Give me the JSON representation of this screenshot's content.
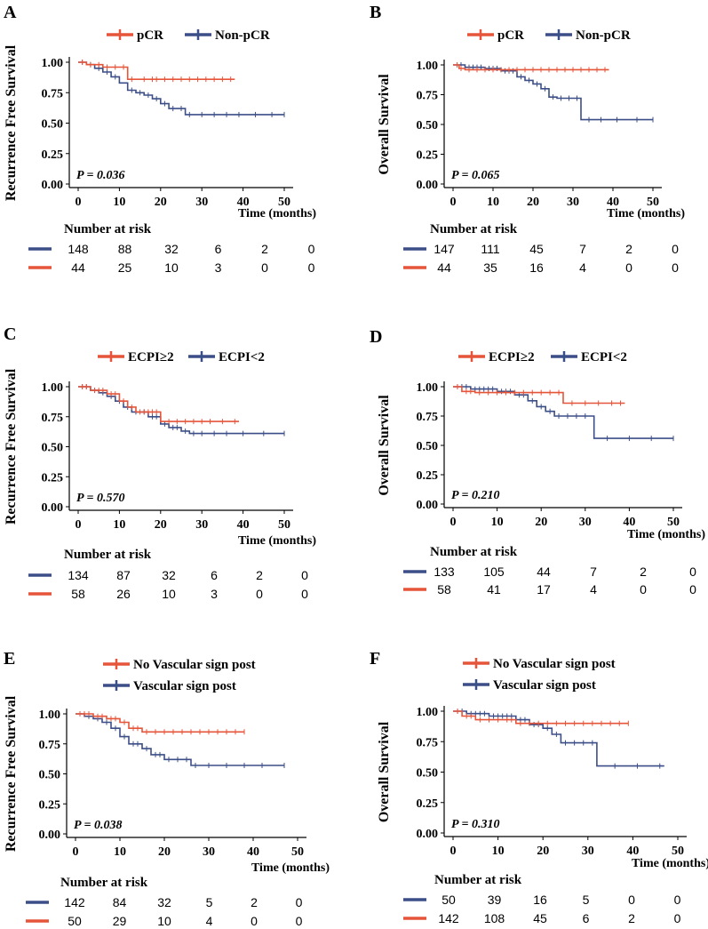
{
  "colors": {
    "red": "#e6553a",
    "blue": "#3b4e87",
    "axis": "#000000"
  },
  "chart_data": [
    {
      "type": "line",
      "label": "A",
      "title": "",
      "ylabel": "Recurrence Free Survival",
      "xlabel": "Time (months)",
      "xlim": [
        0,
        50
      ],
      "ylim": [
        0,
        1
      ],
      "x_ticks": [
        "0",
        "10",
        "20",
        "30",
        "40",
        "50"
      ],
      "y_ticks": [
        "0.00",
        "0.25",
        "0.50",
        "0.75",
        "1.00"
      ],
      "legend": [
        "pCR",
        "Non-pCR"
      ],
      "legend_layout": "row",
      "p_value": "P = 0.036",
      "risk_title": "Number at risk",
      "risk_rows": [
        {
          "series": "Non-pCR",
          "values": [
            "148",
            "88",
            "32",
            "6",
            "2",
            "0"
          ]
        },
        {
          "series": "pCR",
          "values": [
            "44",
            "25",
            "10",
            "3",
            "0",
            "0"
          ]
        }
      ],
      "series": [
        {
          "name": "pCR",
          "color": "red",
          "steps": [
            [
              0,
              1
            ],
            [
              2,
              0.98
            ],
            [
              6,
              0.96
            ],
            [
              12,
              0.86
            ],
            [
              38,
              0.86
            ]
          ],
          "censors": [
            1,
            3,
            5,
            7,
            9,
            11,
            13,
            16,
            18,
            19,
            21,
            23,
            25,
            27,
            29,
            31,
            33,
            35,
            37
          ]
        },
        {
          "name": "Non-pCR",
          "color": "blue",
          "steps": [
            [
              0,
              1
            ],
            [
              2,
              0.98
            ],
            [
              4,
              0.95
            ],
            [
              6,
              0.92
            ],
            [
              8,
              0.88
            ],
            [
              10,
              0.83
            ],
            [
              12,
              0.77
            ],
            [
              14,
              0.75
            ],
            [
              16,
              0.73
            ],
            [
              18,
              0.7
            ],
            [
              20,
              0.66
            ],
            [
              22,
              0.62
            ],
            [
              26,
              0.57
            ],
            [
              50,
              0.57
            ]
          ],
          "censors": [
            1,
            3,
            5,
            7,
            9,
            13,
            15,
            17,
            19,
            21,
            23,
            25,
            27,
            30,
            33,
            36,
            39,
            43,
            47,
            50
          ]
        }
      ]
    },
    {
      "type": "line",
      "label": "B",
      "title": "",
      "ylabel": "Overall Survival",
      "xlabel": "Time (months)",
      "xlim": [
        0,
        50
      ],
      "ylim": [
        0,
        1
      ],
      "x_ticks": [
        "0",
        "10",
        "20",
        "30",
        "40",
        "50"
      ],
      "y_ticks": [
        "0.00",
        "0.25",
        "0.50",
        "0.75",
        "1.00"
      ],
      "legend": [
        "pCR",
        "Non-pCR"
      ],
      "legend_layout": "row",
      "p_value": "P = 0.065",
      "risk_title": "Number at risk",
      "risk_rows": [
        {
          "series": "Non-pCR",
          "values": [
            "147",
            "111",
            "45",
            "7",
            "2",
            "0"
          ]
        },
        {
          "series": "pCR",
          "values": [
            "44",
            "35",
            "16",
            "4",
            "0",
            "0"
          ]
        }
      ],
      "series": [
        {
          "name": "pCR",
          "color": "red",
          "steps": [
            [
              0,
              1
            ],
            [
              1.5,
              0.97
            ],
            [
              3,
              0.96
            ],
            [
              39,
              0.96
            ]
          ],
          "censors": [
            1,
            2,
            4,
            6,
            8,
            10,
            12,
            14,
            16,
            18,
            20,
            22,
            24,
            26,
            28,
            30,
            32,
            34,
            36,
            38
          ]
        },
        {
          "name": "Non-pCR",
          "color": "blue",
          "steps": [
            [
              0,
              1
            ],
            [
              3,
              0.98
            ],
            [
              8,
              0.97
            ],
            [
              12,
              0.95
            ],
            [
              16,
              0.9
            ],
            [
              18,
              0.87
            ],
            [
              20,
              0.84
            ],
            [
              22,
              0.8
            ],
            [
              24,
              0.73
            ],
            [
              26,
              0.72
            ],
            [
              32,
              0.54
            ],
            [
              50,
              0.54
            ]
          ],
          "censors": [
            1,
            2,
            3,
            4,
            5,
            6,
            7,
            9,
            10,
            11,
            13,
            14,
            15,
            17,
            19,
            21,
            23,
            25,
            27,
            29,
            31,
            34,
            37,
            41,
            46,
            50
          ]
        }
      ]
    },
    {
      "type": "line",
      "label": "C",
      "title": "",
      "ylabel": "Recurrence Free Survival",
      "xlabel": "Time (months)",
      "xlim": [
        0,
        50
      ],
      "ylim": [
        0,
        1
      ],
      "x_ticks": [
        "0",
        "10",
        "20",
        "30",
        "40",
        "50"
      ],
      "y_ticks": [
        "0.00",
        "0.25",
        "0.50",
        "0.75",
        "1.00"
      ],
      "legend": [
        "ECPI≥2",
        "ECPI<2"
      ],
      "legend_layout": "row",
      "p_value": "P = 0.570",
      "risk_title": "Number at risk",
      "risk_rows": [
        {
          "series": "ECPI<2",
          "values": [
            "134",
            "87",
            "32",
            "6",
            "2",
            "0"
          ]
        },
        {
          "series": "ECPI≥2",
          "values": [
            "58",
            "26",
            "10",
            "3",
            "0",
            "0"
          ]
        }
      ],
      "series": [
        {
          "name": "ECPI≥2",
          "color": "red",
          "steps": [
            [
              0,
              1
            ],
            [
              3,
              0.97
            ],
            [
              7,
              0.94
            ],
            [
              10,
              0.88
            ],
            [
              12,
              0.83
            ],
            [
              14,
              0.79
            ],
            [
              20,
              0.71
            ],
            [
              39,
              0.71
            ]
          ],
          "censors": [
            1,
            2,
            4,
            5,
            6,
            8,
            9,
            11,
            13,
            15,
            16,
            17,
            18,
            19,
            22,
            24,
            26,
            28,
            30,
            32,
            35,
            38
          ]
        },
        {
          "name": "ECPI<2",
          "color": "blue",
          "steps": [
            [
              0,
              1
            ],
            [
              3,
              0.97
            ],
            [
              5,
              0.95
            ],
            [
              7,
              0.92
            ],
            [
              9,
              0.88
            ],
            [
              11,
              0.83
            ],
            [
              13,
              0.79
            ],
            [
              17,
              0.75
            ],
            [
              20,
              0.69
            ],
            [
              22,
              0.66
            ],
            [
              25,
              0.63
            ],
            [
              27,
              0.61
            ],
            [
              50,
              0.61
            ]
          ],
          "censors": [
            1,
            2,
            4,
            6,
            8,
            10,
            12,
            14,
            16,
            18,
            19,
            21,
            23,
            24,
            26,
            28,
            30,
            33,
            36,
            40,
            45,
            50
          ]
        }
      ]
    },
    {
      "type": "line",
      "label": "D",
      "title": "",
      "ylabel": "Overall Survival",
      "xlabel": "Time (months)",
      "xlim": [
        0,
        50
      ],
      "ylim": [
        0,
        1
      ],
      "x_ticks": [
        "0",
        "10",
        "20",
        "30",
        "40",
        "50"
      ],
      "y_ticks": [
        "0.00",
        "0.25",
        "0.50",
        "0.75",
        "1.00"
      ],
      "legend": [
        "ECPI≥2",
        "ECPI<2"
      ],
      "legend_layout": "row",
      "p_value": "P = 0.210",
      "risk_title": "Number at risk",
      "risk_rows": [
        {
          "series": "ECPI<2",
          "values": [
            "133",
            "105",
            "44",
            "7",
            "2",
            "0"
          ]
        },
        {
          "series": "ECPI≥2",
          "values": [
            "58",
            "41",
            "17",
            "4",
            "0",
            "0"
          ]
        }
      ],
      "series": [
        {
          "name": "ECPI≥2",
          "color": "red",
          "steps": [
            [
              0,
              1
            ],
            [
              2,
              0.96
            ],
            [
              5,
              0.95
            ],
            [
              25,
              0.86
            ],
            [
              39,
              0.86
            ]
          ],
          "censors": [
            1,
            3,
            4,
            6,
            8,
            10,
            12,
            14,
            16,
            18,
            20,
            22,
            24,
            27,
            30,
            33,
            36,
            38
          ]
        },
        {
          "name": "ECPI<2",
          "color": "blue",
          "steps": [
            [
              0,
              1
            ],
            [
              4,
              0.98
            ],
            [
              10,
              0.96
            ],
            [
              14,
              0.93
            ],
            [
              17,
              0.88
            ],
            [
              19,
              0.83
            ],
            [
              21,
              0.79
            ],
            [
              23,
              0.75
            ],
            [
              32,
              0.56
            ],
            [
              50,
              0.56
            ]
          ],
          "censors": [
            1,
            2,
            3,
            5,
            6,
            7,
            8,
            9,
            11,
            12,
            13,
            15,
            16,
            18,
            20,
            22,
            24,
            26,
            28,
            30,
            35,
            40,
            45,
            50
          ]
        }
      ]
    },
    {
      "type": "line",
      "label": "E",
      "title": "",
      "ylabel": "Recurrence Free Survival",
      "xlabel": "Time (months)",
      "xlim": [
        0,
        50
      ],
      "ylim": [
        0,
        1
      ],
      "x_ticks": [
        "0",
        "10",
        "20",
        "30",
        "40",
        "50"
      ],
      "y_ticks": [
        "0.00",
        "0.25",
        "0.50",
        "0.75",
        "1.00"
      ],
      "legend": [
        "No Vascular sign post",
        "Vascular sign post"
      ],
      "legend_layout": "column",
      "p_value": "P = 0.038",
      "risk_title": "Number at risk",
      "risk_rows": [
        {
          "series": "Vascular sign post",
          "values": [
            "142",
            "84",
            "32",
            "5",
            "2",
            "0"
          ]
        },
        {
          "series": "No Vascular sign post",
          "values": [
            "50",
            "29",
            "10",
            "4",
            "0",
            "0"
          ]
        }
      ],
      "series": [
        {
          "name": "No Vascular sign post",
          "color": "red",
          "steps": [
            [
              0,
              1
            ],
            [
              4,
              0.98
            ],
            [
              7,
              0.96
            ],
            [
              10,
              0.93
            ],
            [
              12,
              0.88
            ],
            [
              15,
              0.85
            ],
            [
              38,
              0.85
            ]
          ],
          "censors": [
            1,
            2,
            3,
            5,
            6,
            8,
            9,
            11,
            13,
            14,
            16,
            18,
            20,
            22,
            24,
            26,
            28,
            30,
            32,
            34,
            36,
            38
          ]
        },
        {
          "name": "Vascular sign post",
          "color": "blue",
          "steps": [
            [
              0,
              1
            ],
            [
              2,
              0.98
            ],
            [
              4,
              0.96
            ],
            [
              6,
              0.93
            ],
            [
              8,
              0.88
            ],
            [
              10,
              0.81
            ],
            [
              12,
              0.75
            ],
            [
              15,
              0.71
            ],
            [
              17,
              0.66
            ],
            [
              20,
              0.62
            ],
            [
              26,
              0.57
            ],
            [
              47,
              0.57
            ]
          ],
          "censors": [
            1,
            3,
            5,
            7,
            9,
            11,
            13,
            14,
            16,
            18,
            19,
            21,
            23,
            25,
            27,
            30,
            34,
            38,
            42,
            47
          ]
        }
      ]
    },
    {
      "type": "line",
      "label": "F",
      "title": "",
      "ylabel": "Overall Survival",
      "xlabel": "Time (months)",
      "xlim": [
        0,
        50
      ],
      "ylim": [
        0,
        1
      ],
      "x_ticks": [
        "0",
        "10",
        "20",
        "30",
        "40",
        "50"
      ],
      "y_ticks": [
        "0.00",
        "0.25",
        "0.50",
        "0.75",
        "1.00"
      ],
      "legend": [
        "No Vascular sign post",
        "Vascular sign post"
      ],
      "legend_layout": "column",
      "p_value": "P = 0.310",
      "risk_title": "Number at risk",
      "risk_rows": [
        {
          "series": "Vascular sign post",
          "values": [
            "50",
            "39",
            "16",
            "5",
            "0",
            "0"
          ]
        },
        {
          "series": "No Vascular sign post",
          "values": [
            "142",
            "108",
            "45",
            "6",
            "2",
            "0"
          ]
        }
      ],
      "series": [
        {
          "name": "No Vascular sign post",
          "color": "red",
          "steps": [
            [
              0,
              1
            ],
            [
              2,
              0.96
            ],
            [
              5,
              0.93
            ],
            [
              14,
              0.9
            ],
            [
              39,
              0.9
            ]
          ],
          "censors": [
            1,
            3,
            4,
            6,
            8,
            10,
            12,
            13,
            15,
            17,
            19,
            21,
            23,
            25,
            27,
            29,
            31,
            33,
            35,
            37,
            39
          ]
        },
        {
          "name": "Vascular sign post",
          "color": "blue",
          "steps": [
            [
              0,
              1
            ],
            [
              3,
              0.98
            ],
            [
              8,
              0.96
            ],
            [
              14,
              0.93
            ],
            [
              17,
              0.89
            ],
            [
              20,
              0.86
            ],
            [
              22,
              0.81
            ],
            [
              24,
              0.74
            ],
            [
              32,
              0.55
            ],
            [
              47,
              0.55
            ]
          ],
          "censors": [
            1,
            2,
            4,
            5,
            6,
            7,
            9,
            10,
            11,
            12,
            13,
            15,
            16,
            18,
            19,
            21,
            23,
            25,
            27,
            29,
            31,
            36,
            41,
            46
          ]
        }
      ]
    }
  ]
}
